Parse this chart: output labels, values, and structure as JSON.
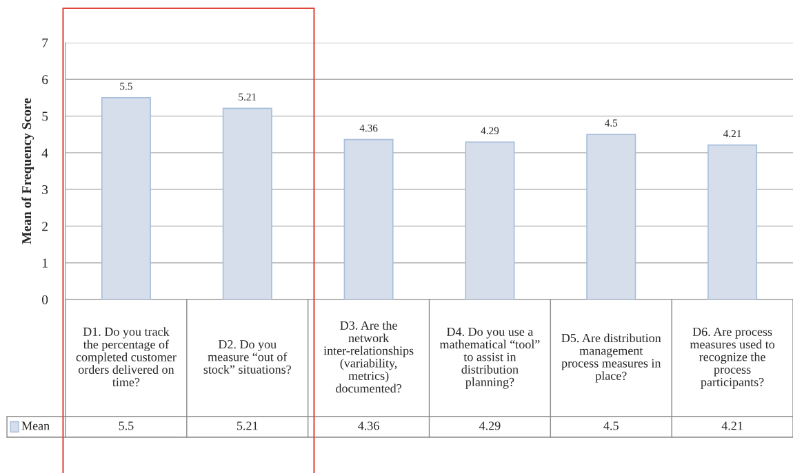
{
  "chart_data": {
    "type": "bar",
    "ylabel": "Mean of Frequency Score",
    "categories": [
      "D1. Do you track the percentage of completed customer orders delivered on time?",
      "D2. Do you measure “out of stock” situations?",
      "D3. Are the network inter-relationships (variability, metrics) documented?",
      "D4. Do you use a mathematical “tool” to assist in distribution planning?",
      "D5. Are distribution management process measures in place?",
      "D6. Are process measures used to recognize the process participants?"
    ],
    "series": [
      {
        "name": "Mean",
        "color": "#d5deea",
        "values": [
          5.5,
          5.21,
          4.36,
          4.29,
          4.5,
          4.21
        ],
        "value_labels": [
          "5.5",
          "5.21",
          "4.36",
          "4.29",
          "4.5",
          "4.21"
        ]
      }
    ],
    "ylim": [
      0,
      7
    ],
    "yticks": [
      0,
      1,
      2,
      3,
      4,
      5,
      6,
      7
    ],
    "grid": "y",
    "annotations": [
      "5.5",
      "5.21",
      "4.36",
      "4.29",
      "4.5",
      "4.21"
    ],
    "data_labels": true,
    "legend": "bottom left"
  }
}
